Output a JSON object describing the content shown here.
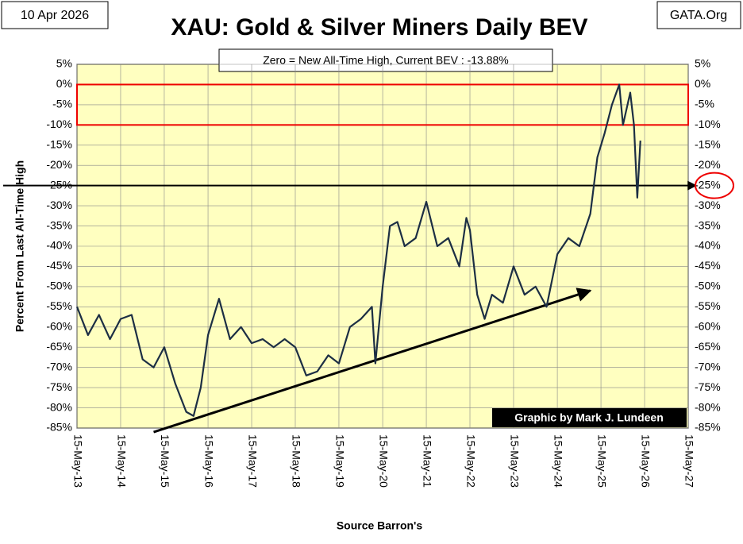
{
  "chart_data": {
    "type": "line",
    "title": "XAU: Gold & Silver Miners Daily BEV",
    "date_label": "10 Apr 2026",
    "source_site": "GATA.Org",
    "subtitle": "Zero = New All-Time High, Current BEV :  -13.88%",
    "ylabel": "Percent  From  Last  All-Time  High",
    "xlabel": "Source Barron's",
    "credit": "Graphic by Mark J. Lundeen",
    "highlight_band": [
      -10,
      0
    ],
    "reference_line": -25,
    "trend_arrow": {
      "x": [
        "2015-02-15",
        "2025-02-15"
      ],
      "y": [
        -86,
        -51
      ]
    },
    "xlim": [
      "2013-05-15",
      "2027-05-15"
    ],
    "xticks": [
      {
        "value": "2013-05-15",
        "label": "15-May-13"
      },
      {
        "value": "2014-05-15",
        "label": "15-May-14"
      },
      {
        "value": "2015-05-15",
        "label": "15-May-15"
      },
      {
        "value": "2016-05-15",
        "label": "15-May-16"
      },
      {
        "value": "2017-05-15",
        "label": "15-May-17"
      },
      {
        "value": "2018-05-15",
        "label": "15-May-18"
      },
      {
        "value": "2019-05-15",
        "label": "15-May-19"
      },
      {
        "value": "2020-05-15",
        "label": "15-May-20"
      },
      {
        "value": "2021-05-15",
        "label": "15-May-21"
      },
      {
        "value": "2022-05-15",
        "label": "15-May-22"
      },
      {
        "value": "2023-05-15",
        "label": "15-May-23"
      },
      {
        "value": "2024-05-15",
        "label": "15-May-24"
      },
      {
        "value": "2025-05-15",
        "label": "15-May-25"
      },
      {
        "value": "2026-05-15",
        "label": "15-May-26"
      },
      {
        "value": "2027-05-15",
        "label": "15-May-27"
      }
    ],
    "ylim": [
      -85,
      5
    ],
    "yticks": [
      {
        "value": 5,
        "label": "5%"
      },
      {
        "value": 0,
        "label": "0%"
      },
      {
        "value": -5,
        "label": "-5%"
      },
      {
        "value": -10,
        "label": "-10%"
      },
      {
        "value": -15,
        "label": "-15%"
      },
      {
        "value": -20,
        "label": "-20%"
      },
      {
        "value": -25,
        "label": "-25%"
      },
      {
        "value": -30,
        "label": "-30%"
      },
      {
        "value": -35,
        "label": "-35%"
      },
      {
        "value": -40,
        "label": "-40%"
      },
      {
        "value": -45,
        "label": "-45%"
      },
      {
        "value": -50,
        "label": "-50%"
      },
      {
        "value": -55,
        "label": "-55%"
      },
      {
        "value": -60,
        "label": "-60%"
      },
      {
        "value": -65,
        "label": "-65%"
      },
      {
        "value": -70,
        "label": "-70%"
      },
      {
        "value": -75,
        "label": "-75%"
      },
      {
        "value": -80,
        "label": "-80%"
      },
      {
        "value": -85,
        "label": "-85%"
      }
    ],
    "grid": true,
    "x": [
      "2013-05-15",
      "2013-08-15",
      "2013-11-15",
      "2014-02-15",
      "2014-05-15",
      "2014-08-15",
      "2014-11-15",
      "2015-02-15",
      "2015-05-15",
      "2015-08-15",
      "2015-11-15",
      "2016-01-15",
      "2016-03-15",
      "2016-05-15",
      "2016-08-15",
      "2016-11-15",
      "2017-02-15",
      "2017-05-15",
      "2017-08-15",
      "2017-11-15",
      "2018-02-15",
      "2018-05-15",
      "2018-08-15",
      "2018-11-15",
      "2019-02-15",
      "2019-05-15",
      "2019-08-15",
      "2019-11-15",
      "2020-02-15",
      "2020-03-15",
      "2020-05-15",
      "2020-07-15",
      "2020-09-15",
      "2020-11-15",
      "2021-02-15",
      "2021-05-15",
      "2021-08-15",
      "2021-11-15",
      "2022-02-15",
      "2022-04-15",
      "2022-05-15",
      "2022-07-15",
      "2022-09-15",
      "2022-11-15",
      "2023-02-15",
      "2023-05-15",
      "2023-08-15",
      "2023-11-15",
      "2024-02-15",
      "2024-05-15",
      "2024-08-15",
      "2024-11-15",
      "2025-02-15",
      "2025-04-15",
      "2025-06-15",
      "2025-08-15",
      "2025-10-15",
      "2025-11-15",
      "2026-01-15",
      "2026-02-15",
      "2026-03-15",
      "2026-04-10"
    ],
    "series": [
      {
        "name": "XAU BEV",
        "color": "#1c2e44",
        "values": [
          -55,
          -62,
          -57,
          -63,
          -58,
          -57,
          -68,
          -70,
          -65,
          -74,
          -81,
          -82,
          -75,
          -62,
          -53,
          -63,
          -60,
          -64,
          -63,
          -65,
          -63,
          -65,
          -72,
          -71,
          -67,
          -69,
          -60,
          -58,
          -55,
          -69,
          -50,
          -35,
          -34,
          -40,
          -38,
          -29,
          -40,
          -38,
          -45,
          -33,
          -36,
          -52,
          -58,
          -52,
          -54,
          -45,
          -52,
          -50,
          -55,
          -42,
          -38,
          -40,
          -32,
          -18,
          -12,
          -5,
          0,
          -10,
          -2,
          -10,
          -28,
          -13.88
        ]
      }
    ]
  }
}
